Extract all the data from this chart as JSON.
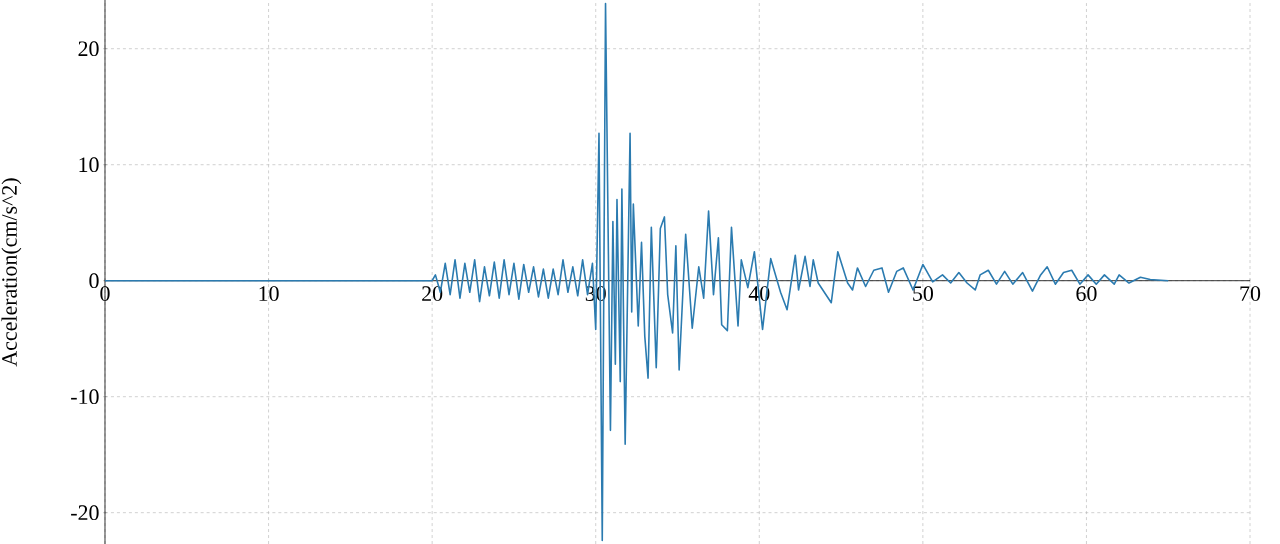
{
  "chart_data": {
    "type": "line",
    "ylabel": "Acceleration(cm/s^2)",
    "xlim": [
      0,
      70
    ],
    "ylim": [
      -22.7,
      24.2
    ],
    "xticks": [
      0,
      10,
      20,
      30,
      40,
      50,
      60,
      70
    ],
    "yticks": [
      -20,
      -10,
      0,
      10,
      20
    ],
    "grid": true,
    "marker": "none",
    "line_style": "solid",
    "series": [
      {
        "color": "#2b7bb0",
        "x": [
          0,
          20,
          20.2,
          20.5,
          20.8,
          21.1,
          21.4,
          21.7,
          22,
          22.3,
          22.6,
          22.9,
          23.2,
          23.5,
          23.8,
          24.1,
          24.4,
          24.7,
          25,
          25.3,
          25.6,
          25.9,
          26.2,
          26.5,
          26.8,
          27.1,
          27.4,
          27.7,
          28,
          28.3,
          28.6,
          28.9,
          29.2,
          29.5,
          29.8,
          30.0,
          30.2,
          30.4,
          30.6,
          30.9,
          31.05,
          31.2,
          31.3,
          31.5,
          31.6,
          31.8,
          32.1,
          32.2,
          32.3,
          32.6,
          32.8,
          33.0,
          33.2,
          33.4,
          33.7,
          33.95,
          34.2,
          34.4,
          34.7,
          34.9,
          35.1,
          35.5,
          35.9,
          36.3,
          36.6,
          36.9,
          37.2,
          37.5,
          37.7,
          38.05,
          38.3,
          38.7,
          38.9,
          39.3,
          39.7,
          40.2,
          40.7,
          41.3,
          41.7,
          42.2,
          42.4,
          42.8,
          43.1,
          43.3,
          43.6,
          44.4,
          44.8,
          45.4,
          45.7,
          46.0,
          46.5,
          47.0,
          47.5,
          47.9,
          48.4,
          48.8,
          49.4,
          50.0,
          50.6,
          51.2,
          51.7,
          52.2,
          52.7,
          53.2,
          53.5,
          54.0,
          54.5,
          55.0,
          55.5,
          56.1,
          56.7,
          57.2,
          57.6,
          58.1,
          58.6,
          59.1,
          59.6,
          60.1,
          60.6,
          61.1,
          61.7,
          62.0,
          62.6,
          63.3,
          63.9,
          65
        ],
        "values": [
          0,
          0,
          0.5,
          -1,
          1.5,
          -1.2,
          1.8,
          -1.5,
          1.5,
          -1,
          1.8,
          -1.8,
          1.2,
          -1.3,
          1.6,
          -1.5,
          1.8,
          -1.2,
          1.5,
          -1.6,
          1.4,
          -1.0,
          1.2,
          -1.4,
          1.0,
          -1.5,
          1.0,
          -1.2,
          1.8,
          -1.0,
          1.2,
          -1.3,
          1.8,
          -1.2,
          1.5,
          -4.2,
          12.7,
          -22.4,
          23.9,
          -12.9,
          5.1,
          -7.2,
          7.0,
          -8.7,
          7.9,
          -14.1,
          12.7,
          -2.7,
          6.6,
          -3.9,
          3.3,
          -4.8,
          -8.4,
          4.6,
          -7.5,
          4.5,
          5.5,
          -1.2,
          -4.5,
          3.0,
          -7.7,
          4.0,
          -4.1,
          1.2,
          -1.5,
          6.0,
          -1.2,
          3.7,
          -3.8,
          -4.3,
          4.6,
          -3.9,
          1.8,
          -0.6,
          2.5,
          -4.2,
          1.9,
          -1.0,
          -2.5,
          2.2,
          -0.8,
          2.1,
          -0.5,
          1.8,
          -0.2,
          -1.9,
          2.5,
          -0.2,
          -0.8,
          1.1,
          -0.5,
          0.9,
          1.1,
          -1.0,
          0.8,
          1.1,
          -0.8,
          1.4,
          -0.1,
          0.5,
          -0.2,
          0.7,
          -0.2,
          -0.8,
          0.5,
          0.9,
          -0.3,
          0.8,
          -0.3,
          0.7,
          -0.9,
          0.5,
          1.2,
          -0.3,
          0.7,
          0.9,
          -0.3,
          0.5,
          -0.3,
          0.5,
          -0.3,
          0.5,
          -0.2,
          0.3,
          0.1,
          0
        ]
      }
    ]
  }
}
